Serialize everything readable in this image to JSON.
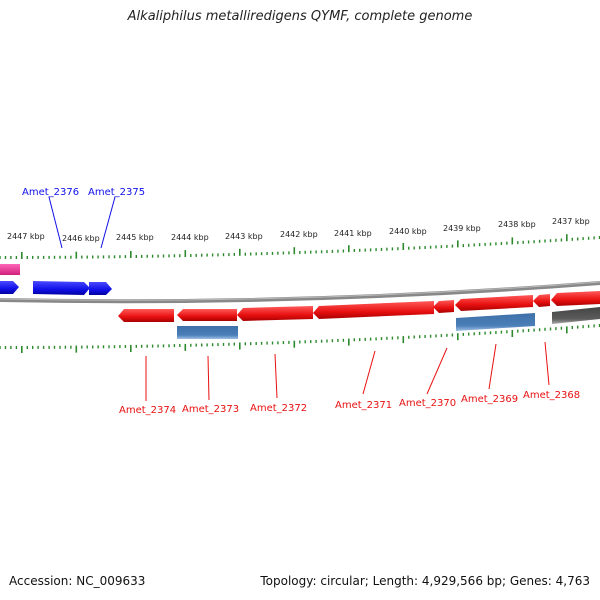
{
  "title": "Alkaliphilus metalliredigens QYMF, complete genome",
  "ruler": {
    "ticks": [
      "2447 kbp",
      "2446 kbp",
      "2445 kbp",
      "2444 kbp",
      "2443 kbp",
      "2442 kbp",
      "2441 kbp",
      "2440 kbp",
      "2439 kbp",
      "2438 kbp",
      "2437 kbp"
    ]
  },
  "genes_top": [
    {
      "label": "Amet_2376"
    },
    {
      "label": "Amet_2375"
    }
  ],
  "genes_bottom": [
    {
      "label": "Amet_2374"
    },
    {
      "label": "Amet_2373"
    },
    {
      "label": "Amet_2372"
    },
    {
      "label": "Amet_2371"
    },
    {
      "label": "Amet_2370"
    },
    {
      "label": "Amet_2369"
    },
    {
      "label": "Amet_2368"
    }
  ],
  "colors": {
    "forward_gene": "#1010e8",
    "reverse_gene": "#e81010",
    "rna": "#4a7fb8",
    "pseudo": "#5c5c5c",
    "pink": "#e8389a",
    "tick": "#2c8a2c",
    "backbone": "#888888"
  },
  "footer": {
    "accession": "Accession: NC_009633",
    "summary": "Topology: circular; Length: 4,929,566 bp; Genes: 4,763"
  }
}
